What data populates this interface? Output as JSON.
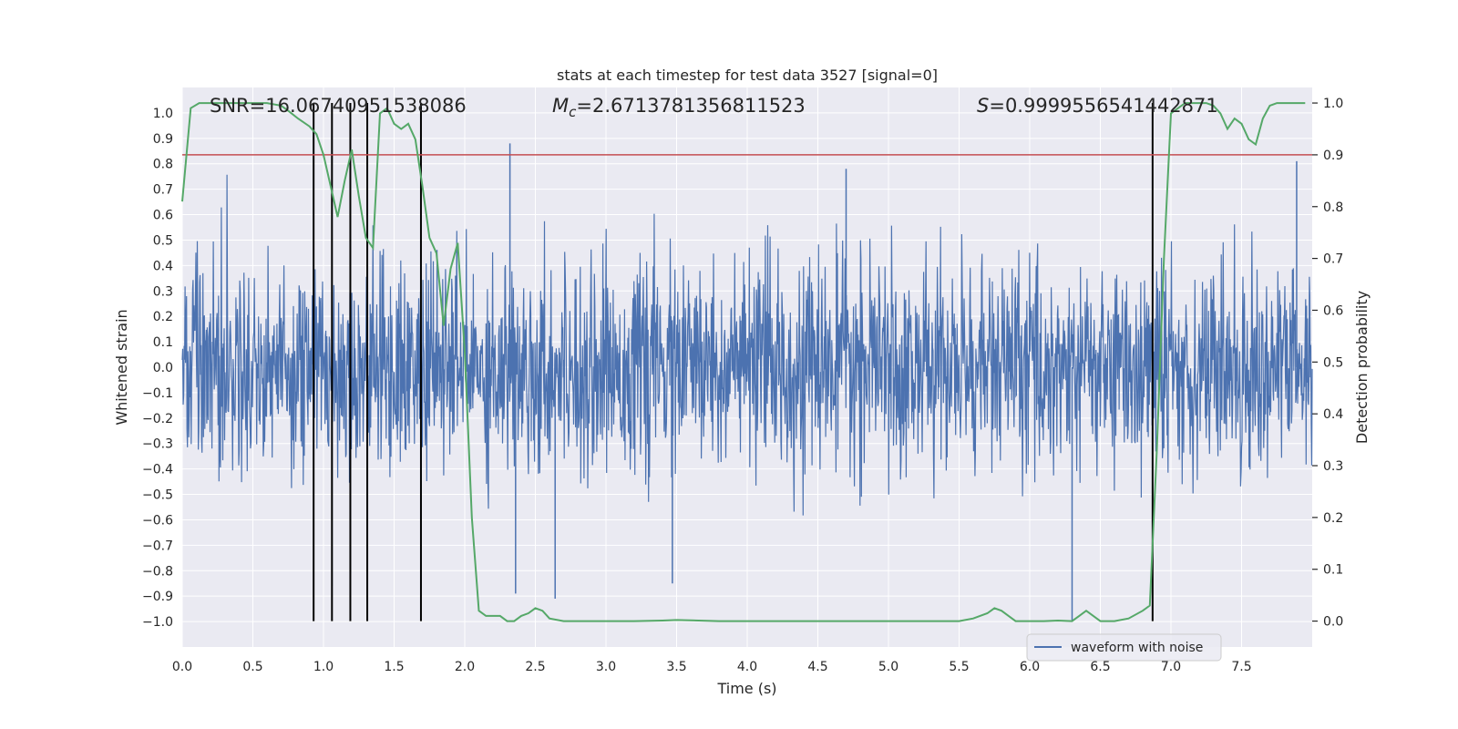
{
  "chart_data": {
    "type": "line",
    "title": "stats at each timestep for test data 3527 [signal=0]",
    "xlabel": "Time (s)",
    "ylabel_left": "Whitened strain",
    "ylabel_right": "Detection probability",
    "xlim": [
      0.0,
      8.0
    ],
    "ylim_left": [
      -1.1,
      1.1
    ],
    "ylim_right": [
      -0.05,
      1.03
    ],
    "xticks": [
      0.0,
      0.5,
      1.0,
      1.5,
      2.0,
      2.5,
      3.0,
      3.5,
      4.0,
      4.5,
      5.0,
      5.5,
      6.0,
      6.5,
      7.0,
      7.5
    ],
    "xtick_labels": [
      "0.0",
      "0.5",
      "1.0",
      "1.5",
      "2.0",
      "2.5",
      "3.0",
      "3.5",
      "4.0",
      "4.5",
      "5.0",
      "5.5",
      "6.0",
      "6.5",
      "7.0",
      "7.5"
    ],
    "yticks_left": [
      1.0,
      0.9,
      0.8,
      0.7,
      0.6,
      0.5,
      0.4,
      0.3,
      0.2,
      0.1,
      0.0,
      -0.1,
      -0.2,
      -0.3,
      -0.4,
      -0.5,
      -0.6,
      -0.7,
      -0.8,
      -0.9,
      -1.0
    ],
    "ytick_labels_left": [
      "1.0",
      "0.9",
      "0.8",
      "0.7",
      "0.6",
      "0.5",
      "0.4",
      "0.3",
      "0.2",
      "0.1",
      "0.0",
      "−0.1",
      "−0.2",
      "−0.3",
      "−0.4",
      "−0.5",
      "−0.6",
      "−0.7",
      "−0.8",
      "−0.9",
      "−1.0"
    ],
    "yticks_right": [
      1.0,
      0.9,
      0.8,
      0.7,
      0.6,
      0.5,
      0.4,
      0.3,
      0.2,
      0.1,
      0.0
    ],
    "ytick_labels_right": [
      "1.0",
      "0.9",
      "0.8",
      "0.7",
      "0.6",
      "0.5",
      "0.4",
      "0.3",
      "0.2",
      "0.1",
      "0.0"
    ],
    "grid": true,
    "annotations": {
      "snr": "SNR=16.06740951538086",
      "mc_symbol": "M",
      "mc_subscript": "c",
      "mc_value": "=2.6713781356811523",
      "s_symbol": "S",
      "s_value": "=0.9999556541442871"
    },
    "threshold": 0.9,
    "detection_markers_x": [
      0.93,
      1.06,
      1.19,
      1.31,
      1.69,
      6.87
    ],
    "waveform": {
      "name": "waveform with noise",
      "envelope_note": "dense noise; typical band about ±0.38, spikes up to 0.88 and down to -1.0",
      "spikes_x": [
        0.93,
        1.06,
        1.19,
        1.31,
        1.69,
        2.32,
        2.36,
        2.64,
        3.47,
        4.7,
        6.3,
        7.89
      ],
      "spikes_y": [
        0.91,
        -0.86,
        -0.81,
        -0.92,
        -0.87,
        0.88,
        -0.89,
        -0.91,
        -0.85,
        0.78,
        -1.0,
        0.81
      ]
    },
    "probability_series": {
      "name": "detection probability",
      "x": [
        0.0,
        0.06,
        0.12,
        0.2,
        0.3,
        0.4,
        0.5,
        0.6,
        0.7,
        0.75,
        0.82,
        0.9,
        0.95,
        1.0,
        1.05,
        1.1,
        1.15,
        1.2,
        1.25,
        1.3,
        1.35,
        1.4,
        1.45,
        1.5,
        1.55,
        1.6,
        1.65,
        1.7,
        1.75,
        1.8,
        1.85,
        1.9,
        1.95,
        2.0,
        2.05,
        2.1,
        2.15,
        2.2,
        2.25,
        2.3,
        2.35,
        2.4,
        2.45,
        2.5,
        2.55,
        2.6,
        2.7,
        3.0,
        3.2,
        3.4,
        3.5,
        3.8,
        4.0,
        4.5,
        5.0,
        5.5,
        5.6,
        5.7,
        5.75,
        5.8,
        5.85,
        5.9,
        6.0,
        6.1,
        6.2,
        6.3,
        6.35,
        6.4,
        6.5,
        6.6,
        6.7,
        6.8,
        6.85,
        6.9,
        6.95,
        7.0,
        7.1,
        7.2,
        7.25,
        7.3,
        7.35,
        7.4,
        7.45,
        7.5,
        7.55,
        7.6,
        7.65,
        7.7,
        7.75,
        7.8,
        7.9,
        7.95
      ],
      "y": [
        0.81,
        0.99,
        1.0,
        1.0,
        1.0,
        1.0,
        1.0,
        1.0,
        0.995,
        0.985,
        0.97,
        0.955,
        0.94,
        0.9,
        0.84,
        0.78,
        0.85,
        0.91,
        0.82,
        0.74,
        0.72,
        0.98,
        0.99,
        0.96,
        0.95,
        0.96,
        0.93,
        0.84,
        0.74,
        0.71,
        0.57,
        0.68,
        0.73,
        0.52,
        0.2,
        0.02,
        0.01,
        0.01,
        0.01,
        0.0,
        0.0,
        0.01,
        0.015,
        0.025,
        0.02,
        0.005,
        0.0,
        0.0,
        0.0,
        0.001,
        0.002,
        0.0,
        0.0,
        0.0,
        0.0,
        0.0,
        0.005,
        0.015,
        0.025,
        0.02,
        0.01,
        0.0,
        0.0,
        0.0,
        0.001,
        0.0,
        0.01,
        0.02,
        0.0,
        0.0,
        0.005,
        0.02,
        0.03,
        0.33,
        0.7,
        0.98,
        1.0,
        1.0,
        1.0,
        0.995,
        0.98,
        0.95,
        0.97,
        0.96,
        0.93,
        0.92,
        0.97,
        0.995,
        1.0,
        1.0,
        1.0,
        1.0
      ]
    },
    "legend": {
      "entries": [
        "waveform with noise"
      ],
      "location": "bottom-right"
    },
    "colors": {
      "background": "#eaeaf2",
      "grid": "#ffffff",
      "waveform": "#4c72b0",
      "probability": "#55a868",
      "threshold": "#c44e52",
      "markers": "#000000",
      "text": "#262626"
    }
  }
}
